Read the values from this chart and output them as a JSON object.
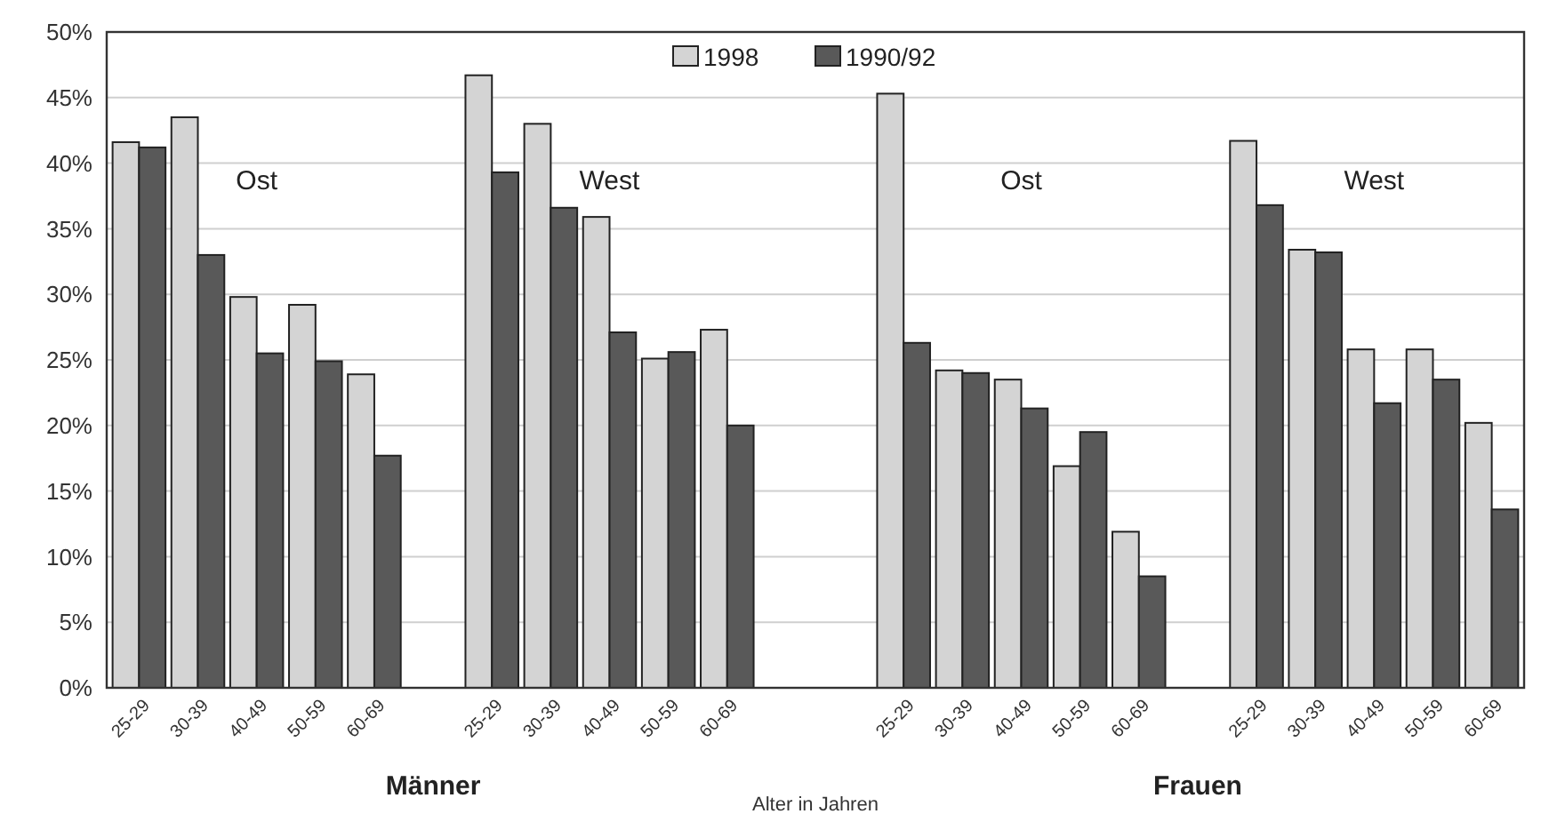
{
  "chart_data": {
    "type": "bar",
    "xlabel": "Alter in Jahren",
    "categories": [
      "25-29",
      "30-39",
      "40-49",
      "50-59",
      "60-69",
      null,
      "25-29",
      "30-39",
      "40-49",
      "50-59",
      "60-69",
      null,
      null,
      "25-29",
      "30-39",
      "40-49",
      "50-59",
      "60-69",
      null,
      "25-29",
      "30-39",
      "40-49",
      "50-59",
      "60-69"
    ],
    "series": [
      {
        "name": "1998",
        "color": "#d4d4d4",
        "values": [
          41.6,
          43.5,
          29.8,
          29.2,
          23.9,
          null,
          46.7,
          43.0,
          35.9,
          25.1,
          27.3,
          null,
          null,
          45.3,
          24.2,
          23.5,
          16.9,
          11.9,
          null,
          41.7,
          33.4,
          25.8,
          25.8,
          20.2
        ]
      },
      {
        "name": "1990/92",
        "color": "#595959",
        "values": [
          41.2,
          33.0,
          25.5,
          24.9,
          17.7,
          null,
          39.3,
          36.6,
          27.1,
          25.6,
          20.0,
          null,
          null,
          26.3,
          24.0,
          21.3,
          19.5,
          8.5,
          null,
          36.8,
          33.2,
          21.7,
          23.5,
          13.6
        ]
      }
    ],
    "ylim": [
      0,
      50
    ],
    "yticks": [
      {
        "value": 0,
        "label": "0%"
      },
      {
        "value": 5,
        "label": "5%"
      },
      {
        "value": 10,
        "label": "10%"
      },
      {
        "value": 15,
        "label": "15%"
      },
      {
        "value": 20,
        "label": "20%"
      },
      {
        "value": 25,
        "label": "25%"
      },
      {
        "value": 30,
        "label": "30%"
      },
      {
        "value": 35,
        "label": "35%"
      },
      {
        "value": 40,
        "label": "40%"
      },
      {
        "value": 45,
        "label": "45%"
      },
      {
        "value": 50,
        "label": "50%"
      }
    ],
    "grid": "y",
    "legend": "top",
    "annotations": [
      "Ost",
      "West",
      "Ost",
      "West",
      "Männer",
      "Frauen"
    ]
  }
}
